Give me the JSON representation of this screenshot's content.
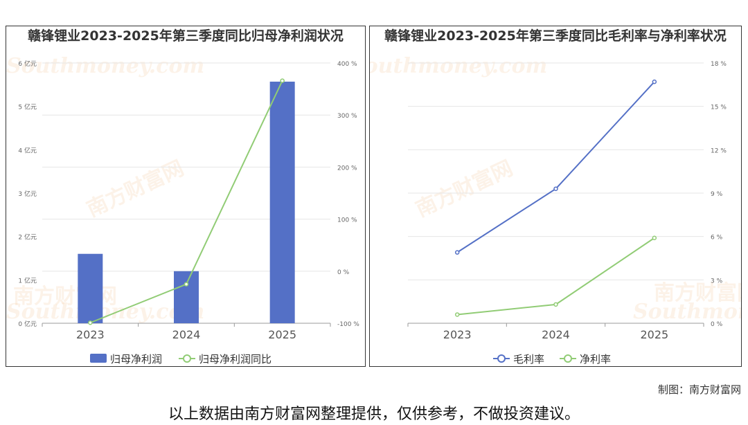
{
  "chart_data": [
    {
      "type": "bar+line",
      "title": "赣锋锂业2023-2025年第三季度同比归母净利润状况",
      "categories": [
        "2023",
        "2024",
        "2025"
      ],
      "series": [
        {
          "name": "归母净利润",
          "type": "bar",
          "axis": "left",
          "values": [
            1.6,
            1.2,
            5.57
          ],
          "color": "#5470c6"
        },
        {
          "name": "归母净利润同比",
          "type": "line",
          "axis": "right",
          "values": [
            -99,
            -25,
            366
          ],
          "color": "#91cc75"
        }
      ],
      "y_left": {
        "ylim": [
          0,
          6
        ],
        "ticks": [
          "0 亿元",
          "1 亿元",
          "2 亿元",
          "3 亿元",
          "4 亿元",
          "5 亿元",
          "6 亿元"
        ]
      },
      "y_right": {
        "ylim": [
          -100,
          400
        ],
        "ticks": [
          "-100 %",
          "0 %",
          "100 %",
          "200 %",
          "300 %",
          "400 %"
        ]
      },
      "legend": "bottom-center",
      "grid": true
    },
    {
      "type": "line",
      "title": "赣锋锂业2023-2025年第三季度同比毛利率与净利率状况",
      "categories": [
        "2023",
        "2024",
        "2025"
      ],
      "series": [
        {
          "name": "毛利率",
          "values": [
            4.9,
            9.3,
            16.7
          ],
          "color": "#5470c6"
        },
        {
          "name": "净利率",
          "values": [
            0.6,
            1.3,
            5.9
          ],
          "color": "#91cc75"
        }
      ],
      "y_right": {
        "ylim": [
          0,
          18
        ],
        "ticks": [
          "0 %",
          "3 %",
          "6 %",
          "9 %",
          "12 %",
          "15 %",
          "18 %"
        ]
      },
      "legend": "bottom-center",
      "grid": true
    }
  ],
  "watermark": {
    "cn": "南方财富网",
    "en": "Southmoney.com"
  },
  "footer": {
    "credit": "制图：南方财富网",
    "disclaimer": "以上数据由南方财富网整理提供，仅供参考，不做投资建议。"
  }
}
